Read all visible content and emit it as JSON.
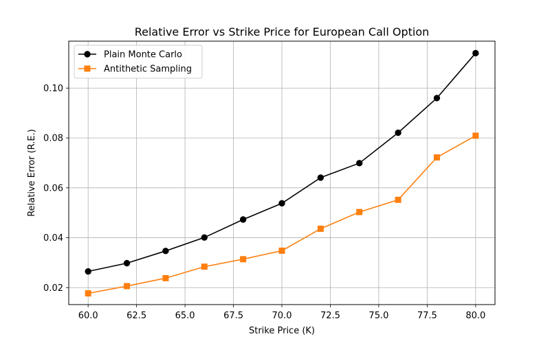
{
  "chart_data": {
    "type": "line",
    "title": "Relative Error vs Strike Price for European Call Option",
    "xlabel": "Strike Price (K)",
    "ylabel": "Relative Error (R.E.)",
    "x": [
      60,
      62,
      64,
      66,
      68,
      70,
      72,
      74,
      76,
      78,
      80
    ],
    "xlim": [
      59.0,
      81.0
    ],
    "ylim": [
      0.0132,
      0.1188
    ],
    "xticks": [
      60.0,
      62.5,
      65.0,
      67.5,
      70.0,
      72.5,
      75.0,
      77.5,
      80.0
    ],
    "xtick_labels": [
      "60.0",
      "62.5",
      "65.0",
      "67.5",
      "70.0",
      "72.5",
      "75.0",
      "77.5",
      "80.0"
    ],
    "yticks": [
      0.02,
      0.04,
      0.06,
      0.08,
      0.1
    ],
    "ytick_labels": [
      "0.02",
      "0.04",
      "0.06",
      "0.08",
      "0.10"
    ],
    "grid": true,
    "legend_position": "top-left",
    "series": [
      {
        "name": "Plain Monte Carlo",
        "color": "#000000",
        "marker": "circle",
        "values": [
          0.0265,
          0.0298,
          0.0347,
          0.0401,
          0.0473,
          0.0538,
          0.0641,
          0.0699,
          0.0821,
          0.096,
          0.114
        ]
      },
      {
        "name": "Antithetic Sampling",
        "color": "#ff7f0e",
        "marker": "square",
        "values": [
          0.0177,
          0.0206,
          0.0238,
          0.0284,
          0.0314,
          0.0348,
          0.0436,
          0.0503,
          0.0552,
          0.0722,
          0.0809
        ]
      }
    ]
  }
}
